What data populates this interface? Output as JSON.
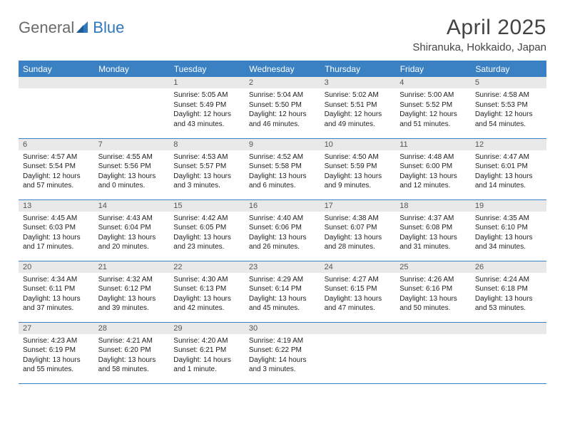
{
  "brand": {
    "part1": "General",
    "part2": "Blue"
  },
  "title": "April 2025",
  "location": "Shiranuka, Hokkaido, Japan",
  "colors": {
    "header_bg": "#3a81c4",
    "header_text": "#ffffff",
    "daynum_bg": "#e9e9e9",
    "rule": "#3a81c4",
    "logo_gray": "#6a6a6a",
    "logo_blue": "#2f78bf",
    "text": "#222222",
    "page_bg": "#ffffff"
  },
  "day_headers": [
    "Sunday",
    "Monday",
    "Tuesday",
    "Wednesday",
    "Thursday",
    "Friday",
    "Saturday"
  ],
  "weeks": [
    [
      null,
      null,
      {
        "n": "1",
        "sr": "Sunrise: 5:05 AM",
        "ss": "Sunset: 5:49 PM",
        "d1": "Daylight: 12 hours",
        "d2": "and 43 minutes."
      },
      {
        "n": "2",
        "sr": "Sunrise: 5:04 AM",
        "ss": "Sunset: 5:50 PM",
        "d1": "Daylight: 12 hours",
        "d2": "and 46 minutes."
      },
      {
        "n": "3",
        "sr": "Sunrise: 5:02 AM",
        "ss": "Sunset: 5:51 PM",
        "d1": "Daylight: 12 hours",
        "d2": "and 49 minutes."
      },
      {
        "n": "4",
        "sr": "Sunrise: 5:00 AM",
        "ss": "Sunset: 5:52 PM",
        "d1": "Daylight: 12 hours",
        "d2": "and 51 minutes."
      },
      {
        "n": "5",
        "sr": "Sunrise: 4:58 AM",
        "ss": "Sunset: 5:53 PM",
        "d1": "Daylight: 12 hours",
        "d2": "and 54 minutes."
      }
    ],
    [
      {
        "n": "6",
        "sr": "Sunrise: 4:57 AM",
        "ss": "Sunset: 5:54 PM",
        "d1": "Daylight: 12 hours",
        "d2": "and 57 minutes."
      },
      {
        "n": "7",
        "sr": "Sunrise: 4:55 AM",
        "ss": "Sunset: 5:56 PM",
        "d1": "Daylight: 13 hours",
        "d2": "and 0 minutes."
      },
      {
        "n": "8",
        "sr": "Sunrise: 4:53 AM",
        "ss": "Sunset: 5:57 PM",
        "d1": "Daylight: 13 hours",
        "d2": "and 3 minutes."
      },
      {
        "n": "9",
        "sr": "Sunrise: 4:52 AM",
        "ss": "Sunset: 5:58 PM",
        "d1": "Daylight: 13 hours",
        "d2": "and 6 minutes."
      },
      {
        "n": "10",
        "sr": "Sunrise: 4:50 AM",
        "ss": "Sunset: 5:59 PM",
        "d1": "Daylight: 13 hours",
        "d2": "and 9 minutes."
      },
      {
        "n": "11",
        "sr": "Sunrise: 4:48 AM",
        "ss": "Sunset: 6:00 PM",
        "d1": "Daylight: 13 hours",
        "d2": "and 12 minutes."
      },
      {
        "n": "12",
        "sr": "Sunrise: 4:47 AM",
        "ss": "Sunset: 6:01 PM",
        "d1": "Daylight: 13 hours",
        "d2": "and 14 minutes."
      }
    ],
    [
      {
        "n": "13",
        "sr": "Sunrise: 4:45 AM",
        "ss": "Sunset: 6:03 PM",
        "d1": "Daylight: 13 hours",
        "d2": "and 17 minutes."
      },
      {
        "n": "14",
        "sr": "Sunrise: 4:43 AM",
        "ss": "Sunset: 6:04 PM",
        "d1": "Daylight: 13 hours",
        "d2": "and 20 minutes."
      },
      {
        "n": "15",
        "sr": "Sunrise: 4:42 AM",
        "ss": "Sunset: 6:05 PM",
        "d1": "Daylight: 13 hours",
        "d2": "and 23 minutes."
      },
      {
        "n": "16",
        "sr": "Sunrise: 4:40 AM",
        "ss": "Sunset: 6:06 PM",
        "d1": "Daylight: 13 hours",
        "d2": "and 26 minutes."
      },
      {
        "n": "17",
        "sr": "Sunrise: 4:38 AM",
        "ss": "Sunset: 6:07 PM",
        "d1": "Daylight: 13 hours",
        "d2": "and 28 minutes."
      },
      {
        "n": "18",
        "sr": "Sunrise: 4:37 AM",
        "ss": "Sunset: 6:08 PM",
        "d1": "Daylight: 13 hours",
        "d2": "and 31 minutes."
      },
      {
        "n": "19",
        "sr": "Sunrise: 4:35 AM",
        "ss": "Sunset: 6:10 PM",
        "d1": "Daylight: 13 hours",
        "d2": "and 34 minutes."
      }
    ],
    [
      {
        "n": "20",
        "sr": "Sunrise: 4:34 AM",
        "ss": "Sunset: 6:11 PM",
        "d1": "Daylight: 13 hours",
        "d2": "and 37 minutes."
      },
      {
        "n": "21",
        "sr": "Sunrise: 4:32 AM",
        "ss": "Sunset: 6:12 PM",
        "d1": "Daylight: 13 hours",
        "d2": "and 39 minutes."
      },
      {
        "n": "22",
        "sr": "Sunrise: 4:30 AM",
        "ss": "Sunset: 6:13 PM",
        "d1": "Daylight: 13 hours",
        "d2": "and 42 minutes."
      },
      {
        "n": "23",
        "sr": "Sunrise: 4:29 AM",
        "ss": "Sunset: 6:14 PM",
        "d1": "Daylight: 13 hours",
        "d2": "and 45 minutes."
      },
      {
        "n": "24",
        "sr": "Sunrise: 4:27 AM",
        "ss": "Sunset: 6:15 PM",
        "d1": "Daylight: 13 hours",
        "d2": "and 47 minutes."
      },
      {
        "n": "25",
        "sr": "Sunrise: 4:26 AM",
        "ss": "Sunset: 6:16 PM",
        "d1": "Daylight: 13 hours",
        "d2": "and 50 minutes."
      },
      {
        "n": "26",
        "sr": "Sunrise: 4:24 AM",
        "ss": "Sunset: 6:18 PM",
        "d1": "Daylight: 13 hours",
        "d2": "and 53 minutes."
      }
    ],
    [
      {
        "n": "27",
        "sr": "Sunrise: 4:23 AM",
        "ss": "Sunset: 6:19 PM",
        "d1": "Daylight: 13 hours",
        "d2": "and 55 minutes."
      },
      {
        "n": "28",
        "sr": "Sunrise: 4:21 AM",
        "ss": "Sunset: 6:20 PM",
        "d1": "Daylight: 13 hours",
        "d2": "and 58 minutes."
      },
      {
        "n": "29",
        "sr": "Sunrise: 4:20 AM",
        "ss": "Sunset: 6:21 PM",
        "d1": "Daylight: 14 hours",
        "d2": "and 1 minute."
      },
      {
        "n": "30",
        "sr": "Sunrise: 4:19 AM",
        "ss": "Sunset: 6:22 PM",
        "d1": "Daylight: 14 hours",
        "d2": "and 3 minutes."
      },
      null,
      null,
      null
    ]
  ]
}
